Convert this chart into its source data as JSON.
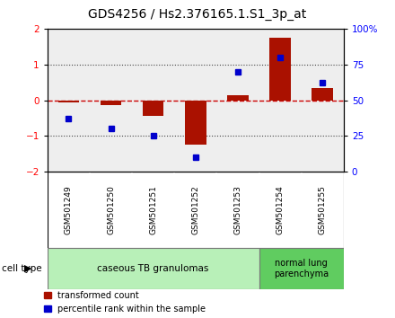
{
  "title": "GDS4256 / Hs2.376165.1.S1_3p_at",
  "samples": [
    "GSM501249",
    "GSM501250",
    "GSM501251",
    "GSM501252",
    "GSM501253",
    "GSM501254",
    "GSM501255"
  ],
  "red_values": [
    -0.05,
    -0.15,
    -0.45,
    -1.25,
    0.15,
    1.75,
    0.35
  ],
  "blue_values": [
    37,
    30,
    25,
    10,
    70,
    80,
    62
  ],
  "ylim_left": [
    -2,
    2
  ],
  "ylim_right": [
    0,
    100
  ],
  "yticks_left": [
    -2,
    -1,
    0,
    1,
    2
  ],
  "yticks_right": [
    0,
    25,
    50,
    75,
    100
  ],
  "ytick_labels_right": [
    "0",
    "25",
    "50",
    "75",
    "100%"
  ],
  "cell_type_groups": [
    {
      "label": "caseous TB granulomas",
      "n_samples": 5,
      "color": "#b8f0b8"
    },
    {
      "label": "normal lung\nparenchyma",
      "n_samples": 2,
      "color": "#60cc60"
    }
  ],
  "red_color": "#aa1100",
  "blue_color": "#0000cc",
  "bar_width": 0.5,
  "bg_color": "#ffffff",
  "plot_bg_color": "#eeeeee",
  "sample_label_bg": "#cccccc",
  "zero_line_color": "#cc0000",
  "dotted_line_color": "#444444",
  "legend_red_label": "transformed count",
  "legend_blue_label": "percentile rank within the sample",
  "cell_type_label": "cell type",
  "title_fontsize": 10,
  "axis_fontsize": 7.5,
  "sample_fontsize": 6.5,
  "legend_fontsize": 7,
  "celltype_fontsize": 7.5
}
